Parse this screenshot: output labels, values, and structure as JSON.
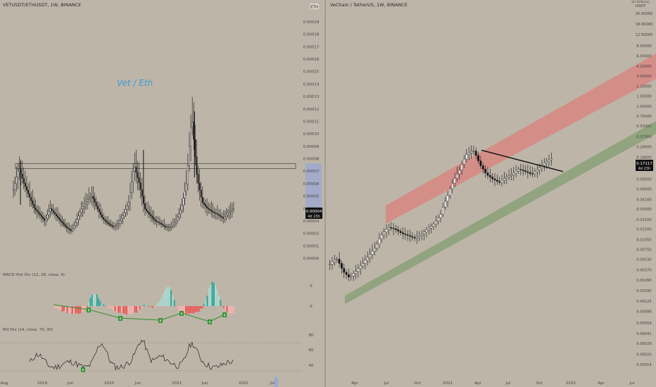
{
  "colors": {
    "background": "#bdb5a8",
    "candle": "#111111",
    "macd_up": "#26a69a",
    "macd_up_light": "#a9ddd4",
    "macd_down": "#ef5350",
    "macd_down_light": "#f5b4b2",
    "div_line": "#2f8f2f",
    "div_badge": "#2f8f2f",
    "rsi_line": "#222222",
    "title_text": "#2a2a2a",
    "axis_text": "#444444",
    "red_channel": "#d98580",
    "green_channel": "#8fa37c",
    "price_highlight": "#9aa8d4",
    "annotation": "#3a9ad9"
  },
  "left_panel": {
    "title": "VETUSDT/ETHUSDT, 1W, BINANCE",
    "annotation": "Vet / Eth",
    "currency_badge": "ETH",
    "price_label": "0.00004",
    "price_sublabel": "4d 23h",
    "macd_title": "MACD Hist Div (12, 26, close, 9)",
    "rsi_title": "RSI Div (14, close, 70, 30)",
    "badges": {
      "macd": "B",
      "rsi": "B"
    },
    "y_ticks": [
      "0.00019",
      "0.00018",
      "0.00017",
      "0.00016",
      "0.00015",
      "0.00014",
      "0.00013",
      "0.00012",
      "0.00011",
      "0.00010",
      "0.00009",
      "0.00008",
      "0.00007",
      "0.00006",
      "0.00005",
      "0.00004",
      "0.00003",
      "0.00002",
      "0.00001",
      "0.00000"
    ],
    "macd_ticks": [
      "0",
      "0"
    ],
    "rsi_ticks": [
      "80",
      "60",
      "40"
    ],
    "x_ticks": [
      "Aug",
      "2019",
      "Jun",
      "2020",
      "Jun",
      "2021",
      "Jun",
      "2022",
      "Jul"
    ]
  },
  "right_panel": {
    "title": "VeChain / TetherUS, 1W, BINANCE",
    "axis_header_1": "(in trillions)",
    "axis_header_2": "USDT",
    "price_label": "0.17117",
    "price_sublabel": "4d 23h",
    "y_ticks": [
      "26.00000",
      "18.00000",
      "12.50000",
      "8.50000",
      "6.00000",
      "4.20000",
      "3.00000",
      "2.10000",
      "1.50000",
      "1.05000",
      "0.75000",
      "0.53000",
      "0.37000",
      "0.26000",
      "0.18000",
      "0.12500",
      "0.08500",
      "0.06000",
      "0.04200",
      "0.03000",
      "0.02100",
      "0.01500",
      "0.01050",
      "0.00750",
      "0.00530",
      "0.00370",
      "0.00260",
      "0.00180",
      "0.00125",
      "0.00088",
      "0.00059",
      "0.00041",
      "0.00029",
      "0.00020",
      "0.00014"
    ],
    "x_ticks": [
      "Apr",
      "Jul",
      "Oct",
      "2021",
      "Apr",
      "Jul",
      "Oct",
      "2022",
      "Apr",
      "Jul"
    ]
  },
  "chart_data": [
    {
      "type": "candlestick",
      "title": "VETUSDT/ETHUSDT, 1W, BINANCE",
      "ylim": [
        0,
        0.00019
      ],
      "x": [
        "Aug",
        "2019",
        "Jun",
        "2020",
        "Jun",
        "2021",
        "Jun",
        "2022",
        "Jul"
      ],
      "close_path_approx": [
        5.5e-05,
        7.3e-05,
        6e-05,
        5e-05,
        4e-05,
        3.5e-05,
        3e-05,
        4e-05,
        3.5e-05,
        3e-05,
        2.5e-05,
        2.2e-05,
        3e-05,
        4e-05,
        4.7e-05,
        5e-05,
        4e-05,
        3.2e-05,
        2.8e-05,
        2.5e-05,
        2.8e-05,
        3.5e-05,
        4.5e-05,
        7.5e-05,
        6e-05,
        4e-05,
        3.5e-05,
        3e-05,
        2.8e-05,
        2.5e-05,
        2.5e-05,
        3e-05,
        4e-05,
        6e-05,
        0.000115,
        6.5e-05,
        4.5e-05,
        4e-05,
        3.7e-05,
        3.5e-05,
        3.2e-05,
        3.7e-05,
        4e-05
      ],
      "resistance_zone": [
        7.2e-05,
        7.6e-05
      ],
      "last_value": 4e-05,
      "indicators": [
        {
          "name": "MACD Hist Div (12, 26, close, 9)"
        },
        {
          "name": "RSI Div (14, close, 70, 30)",
          "levels": [
            70,
            30
          ]
        }
      ]
    },
    {
      "type": "candlestick",
      "title": "VeChain / TetherUS, 1W, BINANCE",
      "scale": "log",
      "ylim": [
        0.00014,
        26
      ],
      "x": [
        "Apr",
        "Jul",
        "Oct",
        "2021",
        "Apr",
        "Jul",
        "Oct",
        "2022",
        "Apr",
        "Jul"
      ],
      "close_path_approx": [
        0.0045,
        0.0055,
        0.0035,
        0.0028,
        0.0035,
        0.0045,
        0.006,
        0.008,
        0.0125,
        0.016,
        0.015,
        0.013,
        0.012,
        0.011,
        0.0125,
        0.015,
        0.018,
        0.025,
        0.045,
        0.08,
        0.12,
        0.2,
        0.23,
        0.14,
        0.1,
        0.085,
        0.075,
        0.09,
        0.1,
        0.12,
        0.11,
        0.1,
        0.12,
        0.15,
        0.17117
      ],
      "last_value": 0.17117,
      "trendline_from": 0.23,
      "trendline_to": 0.11
    }
  ]
}
